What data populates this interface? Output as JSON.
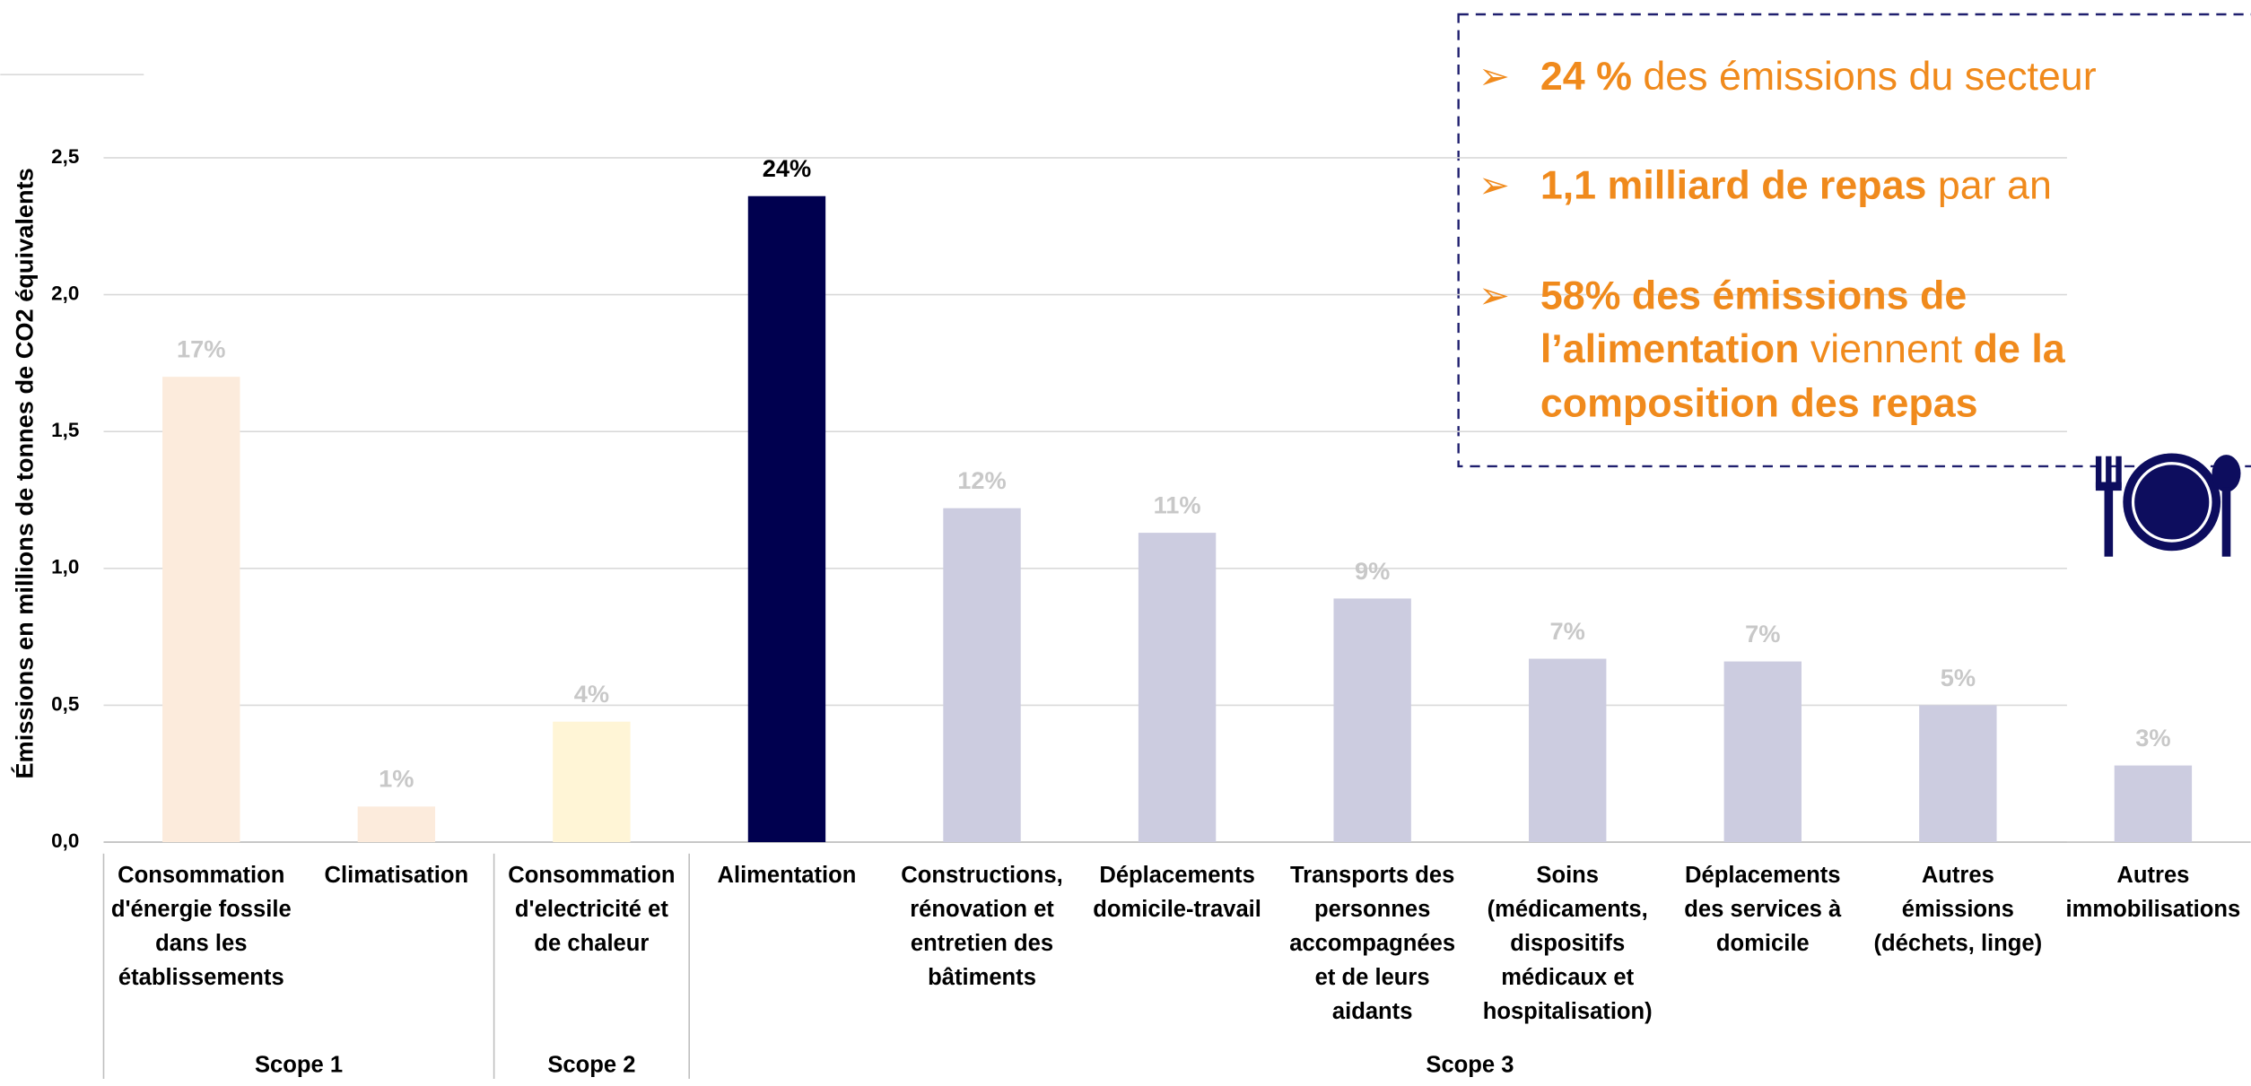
{
  "chart_data": {
    "type": "bar",
    "ylabel": "Émissions en millions de tonnes de CO2 équivalents",
    "categories": [
      [
        "Consommation",
        "d'énergie fossile",
        "dans les",
        "établissements"
      ],
      [
        "Climatisation"
      ],
      [
        "Consommation",
        "d'electricité et",
        "de chaleur"
      ],
      [
        "Alimentation"
      ],
      [
        "Constructions,",
        "rénovation et",
        "entretien des",
        "bâtiments"
      ],
      [
        "Déplacements",
        "domicile-travail"
      ],
      [
        "Transports des",
        "personnes",
        "accompagnées",
        "et de leurs",
        "aidants"
      ],
      [
        "Soins",
        "(médicaments,",
        "dispositifs",
        "médicaux et",
        "hospitalisation)"
      ],
      [
        "Déplacements",
        "des services à",
        "domicile"
      ],
      [
        "Autres",
        "émissions",
        "(déchets, linge)"
      ],
      [
        "Autres",
        "immobilisations"
      ]
    ],
    "values": [
      1.7,
      0.13,
      0.44,
      2.36,
      1.22,
      1.13,
      0.89,
      0.67,
      0.66,
      0.5,
      0.28
    ],
    "value_labels": [
      "17%",
      "1%",
      "4%",
      "24%",
      "12%",
      "11%",
      "9%",
      "7%",
      "7%",
      "5%",
      "3%"
    ],
    "colors": [
      "#fcebdc",
      "#fcebdc",
      "#fff5d6",
      "#00004f",
      "#cccce0",
      "#cccce0",
      "#cccce0",
      "#cccce0",
      "#cccce0",
      "#cccce0",
      "#cccce0"
    ],
    "groups": [
      {
        "name": "Scope 1",
        "count": 2
      },
      {
        "name": "Scope 2",
        "count": 1
      },
      {
        "name": "Scope 3",
        "count": 8
      }
    ],
    "ylim": [
      0,
      2.5
    ],
    "yticks": [
      {
        "value": 0,
        "label": "0,0"
      },
      {
        "value": 0.5,
        "label": "0,5"
      },
      {
        "value": 1,
        "label": "1,0"
      },
      {
        "value": 1.5,
        "label": "1,5"
      },
      {
        "value": 2,
        "label": "2,0"
      },
      {
        "value": 2.5,
        "label": "2,5"
      }
    ],
    "grid": true,
    "annotations": [
      [
        [
          {
            "text": "24 %",
            "bold": true
          },
          {
            "text": " des émissions du secteur",
            "bold": false
          }
        ]
      ],
      [
        [
          {
            "text": "1,1 milliard de repas",
            "bold": true
          },
          {
            "text": " par an",
            "bold": false
          }
        ]
      ],
      [
        [
          {
            "text": "58% des émissions de",
            "bold": true
          }
        ],
        [
          {
            "text": "l’alimentation",
            "bold": true
          },
          {
            "text": " viennent ",
            "bold": false
          },
          {
            "text": "de la",
            "bold": true
          }
        ],
        [
          {
            "text": "composition des repas",
            "bold": true
          }
        ]
      ]
    ]
  }
}
